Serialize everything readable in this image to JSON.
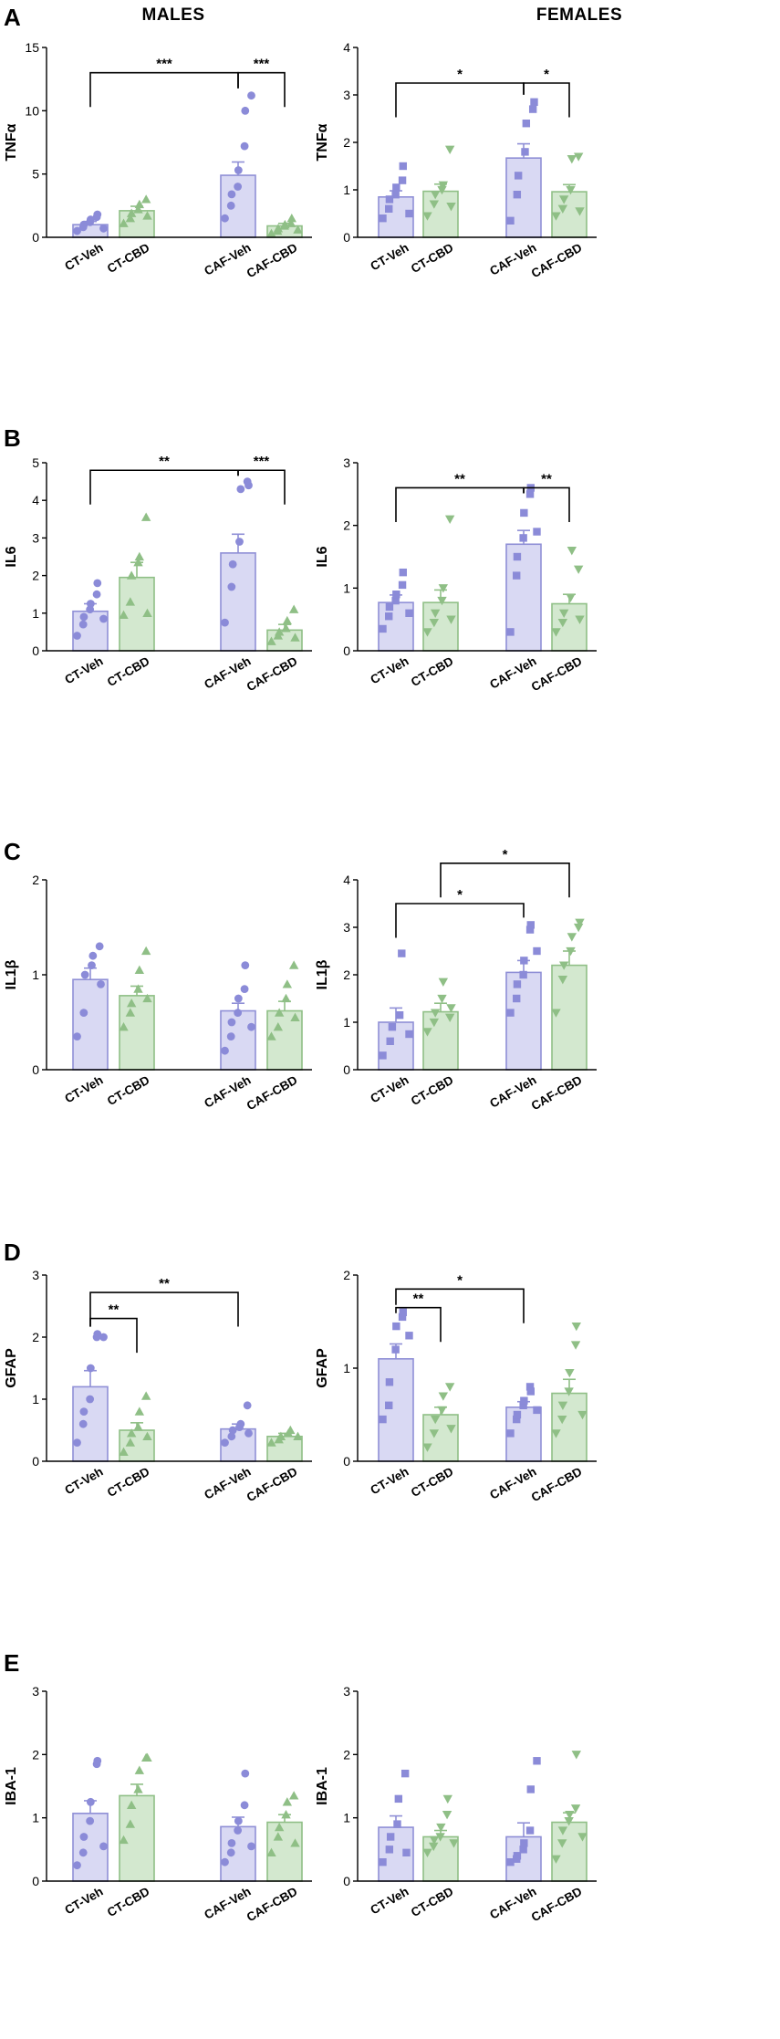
{
  "column_headers": {
    "males": "MALES",
    "females": "FEMALES"
  },
  "panel_letters": [
    "A",
    "B",
    "C",
    "D",
    "E"
  ],
  "colors": {
    "veh_fill": "#d9d9f3",
    "veh_edge": "#8f8fd6",
    "veh_point": "#8b8bd8",
    "cbd_fill": "#d3e8cf",
    "cbd_edge": "#8fbf86",
    "cbd_point": "#8fbf86"
  },
  "chart_data": [
    {
      "type": "bar",
      "panel": "A",
      "sex": "MALES",
      "ylabel": "TNFα",
      "ylim": [
        0,
        15
      ],
      "yticks": [
        0,
        5,
        10,
        15
      ],
      "categories": [
        "CT-Veh",
        "CT-CBD",
        "CAF-Veh",
        "CAF-CBD"
      ],
      "means": [
        1.0,
        2.1,
        4.9,
        0.9
      ],
      "sem": [
        0.25,
        0.35,
        1.05,
        0.2
      ],
      "points": [
        [
          0.5,
          0.8,
          1.0,
          1.2,
          1.4,
          1.6,
          1.8,
          0.7
        ],
        [
          1.1,
          1.5,
          1.9,
          2.2,
          2.6,
          3.0,
          1.7
        ],
        [
          1.5,
          2.5,
          3.4,
          4.0,
          5.3,
          7.2,
          10.0,
          11.2
        ],
        [
          0.3,
          0.5,
          0.7,
          0.9,
          1.0,
          1.1,
          1.5,
          0.6
        ]
      ],
      "comparisons": [
        {
          "from": 0,
          "to": 2,
          "y": 13.0,
          "label": "***"
        },
        {
          "from": 2,
          "to": 3,
          "y": 13.0,
          "label": "***"
        }
      ]
    },
    {
      "type": "bar",
      "panel": "A",
      "sex": "FEMALES",
      "ylabel": "TNFα",
      "ylim": [
        0,
        4
      ],
      "yticks": [
        0,
        1,
        2,
        3,
        4
      ],
      "categories": [
        "CT-Veh",
        "CT-CBD",
        "CAF-Veh",
        "CAF-CBD"
      ],
      "means": [
        0.85,
        0.97,
        1.67,
        0.96
      ],
      "sem": [
        0.13,
        0.15,
        0.3,
        0.15
      ],
      "points": [
        [
          0.4,
          0.6,
          0.8,
          0.9,
          1.05,
          1.2,
          1.5,
          0.5
        ],
        [
          0.45,
          0.7,
          0.9,
          1.0,
          1.1,
          1.85,
          0.65
        ],
        [
          0.35,
          0.9,
          1.3,
          1.8,
          2.4,
          2.7,
          2.85
        ],
        [
          0.45,
          0.6,
          0.8,
          1.0,
          1.65,
          1.7,
          0.55
        ]
      ],
      "comparisons": [
        {
          "from": 0,
          "to": 2,
          "y": 3.25,
          "label": "*"
        },
        {
          "from": 2,
          "to": 3,
          "y": 3.25,
          "label": "*"
        }
      ]
    },
    {
      "type": "bar",
      "panel": "B",
      "sex": "MALES",
      "ylabel": "IL6",
      "ylim": [
        0,
        5
      ],
      "yticks": [
        0,
        1,
        2,
        3,
        4,
        5
      ],
      "categories": [
        "CT-Veh",
        "CT-CBD",
        "CAF-Veh",
        "CAF-CBD"
      ],
      "means": [
        1.05,
        1.95,
        2.6,
        0.55
      ],
      "sem": [
        0.2,
        0.4,
        0.5,
        0.15
      ],
      "points": [
        [
          0.4,
          0.7,
          0.9,
          1.1,
          1.25,
          1.5,
          1.8,
          0.85
        ],
        [
          0.95,
          1.3,
          2.0,
          2.35,
          2.5,
          3.55,
          1.0
        ],
        [
          0.75,
          1.7,
          2.3,
          2.9,
          4.3,
          4.5,
          4.4
        ],
        [
          0.25,
          0.4,
          0.5,
          0.6,
          0.8,
          1.1,
          0.35
        ]
      ],
      "comparisons": [
        {
          "from": 0,
          "to": 2,
          "y": 4.8,
          "label": "**"
        },
        {
          "from": 2,
          "to": 3,
          "y": 4.8,
          "label": "***"
        }
      ]
    },
    {
      "type": "bar",
      "panel": "B",
      "sex": "FEMALES",
      "ylabel": "IL6",
      "ylim": [
        0,
        3
      ],
      "yticks": [
        0,
        1,
        2,
        3
      ],
      "categories": [
        "CT-Veh",
        "CT-CBD",
        "CAF-Veh",
        "CAF-CBD"
      ],
      "means": [
        0.77,
        0.77,
        1.7,
        0.75
      ],
      "sem": [
        0.12,
        0.2,
        0.22,
        0.15
      ],
      "points": [
        [
          0.35,
          0.55,
          0.7,
          0.8,
          0.9,
          1.05,
          1.25,
          0.6
        ],
        [
          0.3,
          0.45,
          0.6,
          0.8,
          1.0,
          2.1,
          0.5
        ],
        [
          0.3,
          1.2,
          1.5,
          1.8,
          2.2,
          2.5,
          2.6,
          1.9
        ],
        [
          0.3,
          0.45,
          0.6,
          0.85,
          1.6,
          1.3,
          0.5
        ]
      ],
      "comparisons": [
        {
          "from": 0,
          "to": 2,
          "y": 2.6,
          "label": "**"
        },
        {
          "from": 2,
          "to": 3,
          "y": 2.6,
          "label": "**"
        }
      ]
    },
    {
      "type": "bar",
      "panel": "C",
      "sex": "MALES",
      "ylabel": "IL1β",
      "ylim": [
        0,
        2
      ],
      "yticks": [
        0,
        1,
        2
      ],
      "categories": [
        "CT-Veh",
        "CT-CBD",
        "CAF-Veh",
        "CAF-CBD"
      ],
      "means": [
        0.95,
        0.78,
        0.62,
        0.62
      ],
      "sem": [
        0.12,
        0.1,
        0.08,
        0.1
      ],
      "points": [
        [
          0.35,
          0.6,
          1.0,
          1.1,
          1.2,
          1.3,
          0.9
        ],
        [
          0.45,
          0.6,
          0.7,
          0.85,
          1.05,
          1.25,
          0.75
        ],
        [
          0.2,
          0.35,
          0.5,
          0.6,
          0.75,
          0.85,
          1.1,
          0.45
        ],
        [
          0.35,
          0.45,
          0.6,
          0.75,
          0.9,
          1.1,
          0.55
        ]
      ],
      "comparisons": []
    },
    {
      "type": "bar",
      "panel": "C",
      "sex": "FEMALES",
      "ylabel": "IL1β",
      "ylim": [
        0,
        4
      ],
      "yticks": [
        0,
        1,
        2,
        3,
        4
      ],
      "categories": [
        "CT-Veh",
        "CT-CBD",
        "CAF-Veh",
        "CAF-CBD"
      ],
      "means": [
        1.0,
        1.22,
        2.05,
        2.2
      ],
      "sem": [
        0.3,
        0.18,
        0.25,
        0.3
      ],
      "points": [
        [
          0.3,
          0.6,
          0.9,
          1.15,
          2.45,
          0.75
        ],
        [
          0.8,
          1.0,
          1.2,
          1.5,
          1.85,
          1.1,
          1.3
        ],
        [
          1.2,
          1.5,
          1.8,
          2.0,
          2.3,
          2.95,
          3.05,
          2.5
        ],
        [
          1.2,
          1.9,
          2.2,
          2.5,
          2.8,
          3.0,
          3.1
        ]
      ],
      "comparisons": [
        {
          "from": 0,
          "to": 2,
          "y": 3.5,
          "label": "*"
        },
        {
          "from": 1,
          "to": 3,
          "y": 4.35,
          "label": "*"
        }
      ]
    },
    {
      "type": "bar",
      "panel": "D",
      "sex": "MALES",
      "ylabel": "GFAP",
      "ylim": [
        0,
        3
      ],
      "yticks": [
        0,
        1,
        2,
        3
      ],
      "categories": [
        "CT-Veh",
        "CT-CBD",
        "CAF-Veh",
        "CAF-CBD"
      ],
      "means": [
        1.2,
        0.5,
        0.52,
        0.4
      ],
      "sem": [
        0.26,
        0.12,
        0.08,
        0.05
      ],
      "points": [
        [
          0.3,
          0.6,
          0.8,
          1.0,
          1.5,
          2.0,
          2.05,
          2.0
        ],
        [
          0.15,
          0.3,
          0.45,
          0.55,
          0.8,
          1.05,
          0.4
        ],
        [
          0.3,
          0.4,
          0.5,
          0.55,
          0.6,
          0.9,
          0.45
        ],
        [
          0.3,
          0.35,
          0.4,
          0.45,
          0.5,
          0.4
        ]
      ],
      "comparisons": [
        {
          "from": 0,
          "to": 1,
          "y": 2.3,
          "label": "**"
        },
        {
          "from": 0,
          "to": 2,
          "y": 2.72,
          "label": "**"
        }
      ]
    },
    {
      "type": "bar",
      "panel": "D",
      "sex": "FEMALES",
      "ylabel": "GFAP",
      "ylim": [
        0,
        2
      ],
      "yticks": [
        0,
        1,
        2
      ],
      "categories": [
        "CT-Veh",
        "CT-CBD",
        "CAF-Veh",
        "CAF-CBD"
      ],
      "means": [
        1.1,
        0.5,
        0.58,
        0.73
      ],
      "sem": [
        0.16,
        0.08,
        0.06,
        0.15
      ],
      "points": [
        [
          0.45,
          0.6,
          0.85,
          1.2,
          1.45,
          1.55,
          1.6,
          1.35
        ],
        [
          0.15,
          0.3,
          0.45,
          0.55,
          0.7,
          0.8,
          0.35
        ],
        [
          0.3,
          0.45,
          0.5,
          0.6,
          0.65,
          0.8,
          0.75,
          0.55
        ],
        [
          0.3,
          0.45,
          0.6,
          0.75,
          0.95,
          1.25,
          1.45,
          0.5
        ]
      ],
      "comparisons": [
        {
          "from": 0,
          "to": 1,
          "y": 1.65,
          "label": "**"
        },
        {
          "from": 0,
          "to": 2,
          "y": 1.85,
          "label": "*"
        }
      ]
    },
    {
      "type": "bar",
      "panel": "E",
      "sex": "MALES",
      "ylabel": "IBA-1",
      "ylim": [
        0,
        3
      ],
      "yticks": [
        0,
        1,
        2,
        3
      ],
      "categories": [
        "CT-Veh",
        "CT-CBD",
        "CAF-Veh",
        "CAF-CBD"
      ],
      "means": [
        1.07,
        1.35,
        0.86,
        0.93
      ],
      "sem": [
        0.2,
        0.18,
        0.15,
        0.12
      ],
      "points": [
        [
          0.25,
          0.45,
          0.7,
          0.95,
          1.25,
          1.85,
          1.9,
          0.55
        ],
        [
          0.65,
          0.9,
          1.2,
          1.45,
          1.75,
          1.95,
          1.95
        ],
        [
          0.3,
          0.45,
          0.6,
          0.8,
          0.95,
          1.2,
          1.7,
          0.55
        ],
        [
          0.45,
          0.7,
          0.85,
          1.05,
          1.25,
          1.35,
          0.6
        ]
      ],
      "comparisons": []
    },
    {
      "type": "bar",
      "panel": "E",
      "sex": "FEMALES",
      "ylabel": "IBA-1",
      "ylim": [
        0,
        3
      ],
      "yticks": [
        0,
        1,
        2,
        3
      ],
      "categories": [
        "CT-Veh",
        "CT-CBD",
        "CAF-Veh",
        "CAF-CBD"
      ],
      "means": [
        0.85,
        0.7,
        0.7,
        0.93
      ],
      "sem": [
        0.18,
        0.1,
        0.22,
        0.15
      ],
      "points": [
        [
          0.3,
          0.5,
          0.7,
          0.9,
          1.3,
          1.7,
          0.45
        ],
        [
          0.45,
          0.55,
          0.65,
          0.7,
          0.85,
          1.05,
          1.3,
          0.6
        ],
        [
          0.3,
          0.35,
          0.4,
          0.5,
          0.6,
          0.8,
          1.45,
          1.9
        ],
        [
          0.35,
          0.6,
          0.8,
          0.95,
          1.05,
          1.15,
          2.0,
          0.7
        ]
      ],
      "comparisons": []
    }
  ]
}
